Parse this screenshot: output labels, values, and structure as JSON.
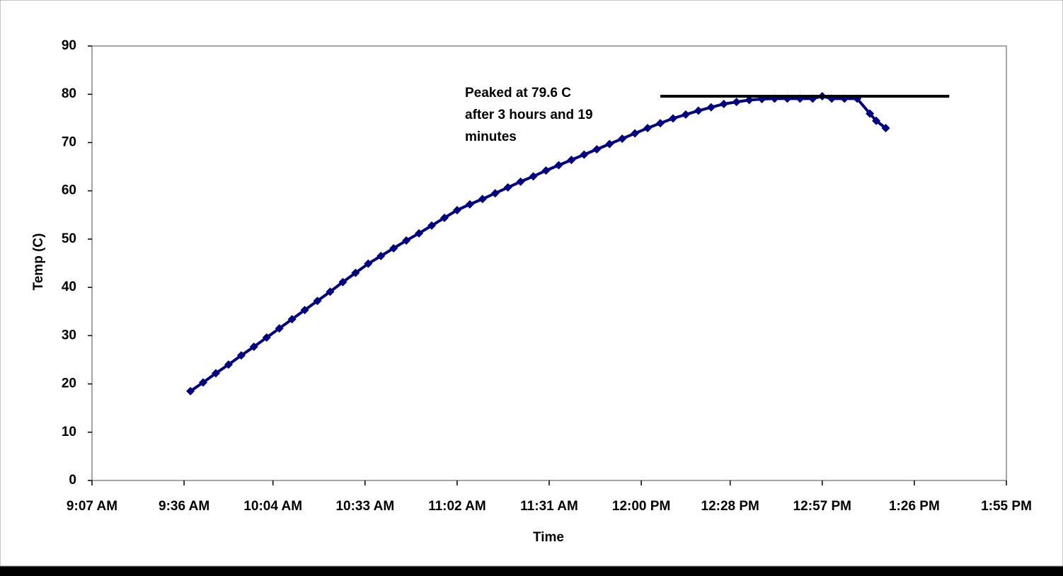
{
  "chart_data": {
    "type": "line",
    "x_label": "Time",
    "y_label": "Temp (C)",
    "annotation": [
      "Peaked at 79.6 C",
      "after 3 hours and 19",
      "minutes"
    ],
    "peak_line": {
      "y": 79.6,
      "x": [
        726,
        817
      ]
    },
    "xlim": [
      547,
      835
    ],
    "xticks": [
      {
        "value": 547,
        "label": "9:07 AM"
      },
      {
        "value": 576,
        "label": "9:36 AM"
      },
      {
        "value": 604,
        "label": "10:04 AM"
      },
      {
        "value": 633,
        "label": "10:33 AM"
      },
      {
        "value": 662,
        "label": "11:02 AM"
      },
      {
        "value": 691,
        "label": "11:31 AM"
      },
      {
        "value": 720,
        "label": "12:00 PM"
      },
      {
        "value": 748,
        "label": "12:28 PM"
      },
      {
        "value": 777,
        "label": "12:57 PM"
      },
      {
        "value": 806,
        "label": "1:26 PM"
      },
      {
        "value": 835,
        "label": "1:55 PM"
      }
    ],
    "ylim": [
      0,
      90
    ],
    "yticks": [
      0,
      10,
      20,
      30,
      40,
      50,
      60,
      70,
      80,
      90
    ],
    "series": [
      {
        "name": "Temp",
        "color": "#000080",
        "x": [
          578,
          582,
          586,
          590,
          594,
          598,
          602,
          606,
          610,
          614,
          618,
          622,
          626,
          630,
          634,
          638,
          642,
          646,
          650,
          654,
          658,
          662,
          666,
          670,
          674,
          678,
          682,
          686,
          690,
          694,
          698,
          702,
          706,
          710,
          714,
          718,
          722,
          726,
          730,
          734,
          738,
          742,
          746,
          750,
          754,
          758,
          762,
          766,
          770,
          774,
          777,
          780,
          784,
          788,
          792,
          794,
          797
        ],
        "values": [
          18.5,
          20.3,
          22.2,
          24.0,
          25.9,
          27.7,
          29.6,
          31.5,
          33.4,
          35.3,
          37.2,
          39.1,
          41.1,
          43.0,
          44.9,
          46.5,
          48.1,
          49.7,
          51.2,
          52.8,
          54.4,
          56.0,
          57.2,
          58.3,
          59.5,
          60.7,
          61.9,
          63.0,
          64.2,
          65.3,
          66.4,
          67.5,
          68.6,
          69.7,
          70.8,
          71.9,
          73.0,
          74.0,
          75.0,
          75.8,
          76.6,
          77.3,
          78.0,
          78.4,
          78.8,
          79.0,
          79.1,
          79.1,
          79.1,
          79.1,
          79.6,
          79.1,
          79.1,
          79.1,
          76.0,
          74.5,
          73.0
        ]
      }
    ]
  }
}
